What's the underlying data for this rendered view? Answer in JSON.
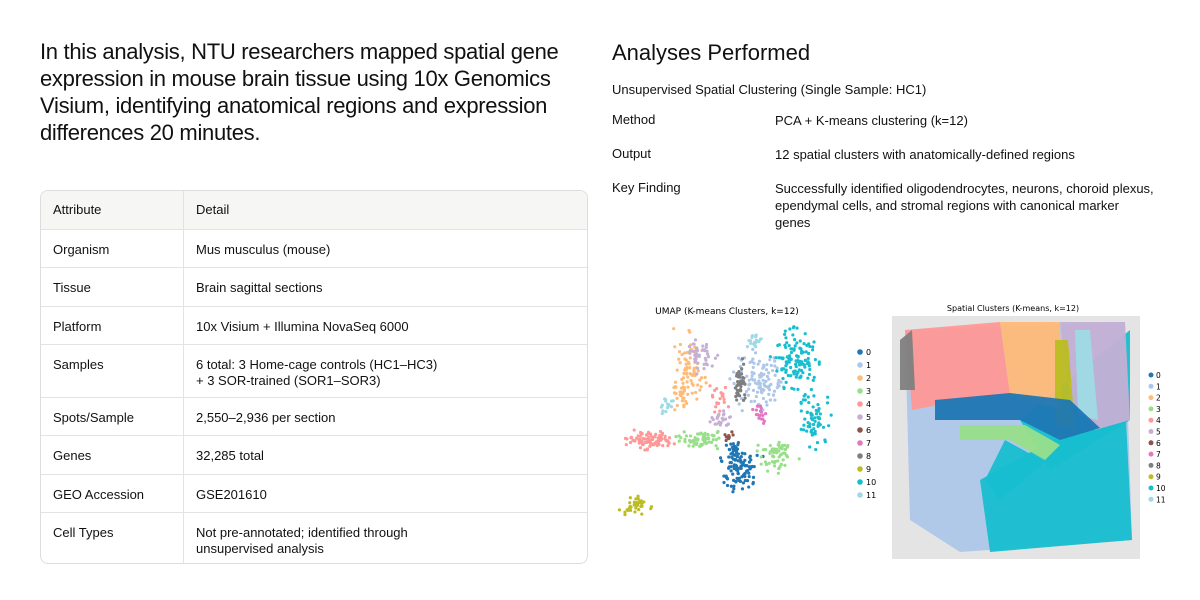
{
  "intro": {
    "lines": [
      "In this analysis, NTU researchers mapped spatial gene",
      "expression in mouse brain tissue using 10x Genomics",
      "Visium,  identifying anatomical regions and expression",
      "differences 20 minutes."
    ]
  },
  "table": {
    "header": [
      "Attribute",
      "Detail"
    ],
    "rows": [
      [
        "Organism",
        [
          "Mus musculus (mouse)"
        ]
      ],
      [
        "Tissue",
        [
          "Brain sagittal sections"
        ]
      ],
      [
        "Platform",
        [
          "10x Visium + Illumina NovaSeq 6000"
        ]
      ],
      [
        "Samples",
        [
          "6 total: 3 Home-cage controls (HC1–HC3)",
          "+ 3 SOR-trained (SOR1–SOR3)"
        ]
      ],
      [
        "Spots/Sample",
        [
          "2,550–2,936 per section"
        ]
      ],
      [
        "Genes",
        [
          "32,285 total"
        ]
      ],
      [
        "GEO Accession",
        [
          "GSE201610"
        ]
      ],
      [
        "Cell Types",
        [
          "Not pre-annotated; identified through",
          "unsupervised analysis"
        ]
      ]
    ]
  },
  "analyses": {
    "title": "Analyses Performed",
    "subtitle": "Unsupervised Spatial Clustering  (Single Sample: HC1)",
    "items": [
      [
        "Method",
        [
          "PCA + K-means clustering (k=12)"
        ]
      ],
      [
        "Output",
        [
          "12 spatial clusters with anatomically-defined regions"
        ]
      ],
      [
        "Key Finding",
        [
          "Successfully identified oligodendrocytes, neurons, choroid plexus,",
          "ependymal cells, and stromal regions with canonical marker",
          "genes"
        ]
      ]
    ]
  },
  "figures": {
    "umap_title": "UMAP (K-means Clusters, k=12)",
    "spatial_title": "Spatial Clusters (K-means, k=12)",
    "legend": [
      {
        "label": "0",
        "color": "#1f77b4"
      },
      {
        "label": "1",
        "color": "#aec7e8"
      },
      {
        "label": "2",
        "color": "#ffbb78"
      },
      {
        "label": "3",
        "color": "#98df8a"
      },
      {
        "label": "4",
        "color": "#ff9896"
      },
      {
        "label": "5",
        "color": "#c5b0d5"
      },
      {
        "label": "6",
        "color": "#8c564b"
      },
      {
        "label": "7",
        "color": "#e377c2"
      },
      {
        "label": "8",
        "color": "#7f7f7f"
      },
      {
        "label": "9",
        "color": "#bcbd22"
      },
      {
        "label": "10",
        "color": "#17becf"
      },
      {
        "label": "11",
        "color": "#9edae5"
      }
    ]
  }
}
